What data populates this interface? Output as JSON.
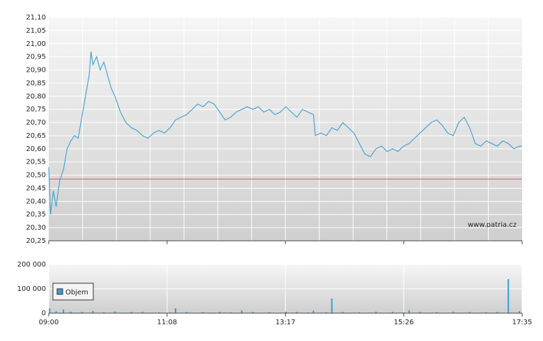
{
  "chart_data": [
    {
      "type": "line",
      "xlim": [
        0,
        515
      ],
      "ylim": [
        20.25,
        21.1
      ],
      "yticks": [
        {
          "value": 20.25,
          "label": "20,25"
        },
        {
          "value": 20.3,
          "label": "20,30"
        },
        {
          "value": 20.35,
          "label": "20,35"
        },
        {
          "value": 20.4,
          "label": "20,40"
        },
        {
          "value": 20.45,
          "label": "20,45"
        },
        {
          "value": 20.5,
          "label": "20,50"
        },
        {
          "value": 20.55,
          "label": "20,55"
        },
        {
          "value": 20.6,
          "label": "20,60"
        },
        {
          "value": 20.65,
          "label": "20,65"
        },
        {
          "value": 20.7,
          "label": "20,70"
        },
        {
          "value": 20.75,
          "label": "20,75"
        },
        {
          "value": 20.8,
          "label": "20,80"
        },
        {
          "value": 20.85,
          "label": "20,85"
        },
        {
          "value": 20.9,
          "label": "20,90"
        },
        {
          "value": 20.95,
          "label": "20,95"
        },
        {
          "value": 21.0,
          "label": "21,00"
        },
        {
          "value": 21.05,
          "label": "21,05"
        },
        {
          "value": 21.1,
          "label": "21,10"
        }
      ],
      "grid": true,
      "color": "#4aa3d0",
      "reference_line": 20.485,
      "reference_color": "#e05050",
      "watermark": "www.patria.cz",
      "x": [
        0,
        2,
        5,
        8,
        12,
        16,
        20,
        24,
        28,
        32,
        36,
        40,
        44,
        46,
        48,
        52,
        56,
        60,
        64,
        68,
        72,
        78,
        84,
        90,
        96,
        102,
        108,
        114,
        120,
        126,
        132,
        138,
        144,
        150,
        156,
        162,
        168,
        174,
        180,
        186,
        192,
        198,
        204,
        210,
        216,
        222,
        228,
        234,
        240,
        246,
        252,
        258,
        264,
        270,
        276,
        282,
        288,
        290,
        296,
        302,
        308,
        314,
        320,
        326,
        332,
        338,
        344,
        350,
        356,
        362,
        368,
        374,
        380,
        386,
        392,
        398,
        404,
        410,
        416,
        422,
        428,
        434,
        440,
        446,
        452,
        458,
        464,
        470,
        476,
        482,
        488,
        494,
        500,
        506,
        512,
        515
      ],
      "values": [
        20.53,
        20.35,
        20.44,
        20.38,
        20.48,
        20.52,
        20.6,
        20.63,
        20.65,
        20.64,
        20.72,
        20.8,
        20.88,
        20.97,
        20.92,
        20.95,
        20.9,
        20.93,
        20.88,
        20.83,
        20.8,
        20.74,
        20.7,
        20.68,
        20.67,
        20.65,
        20.64,
        20.66,
        20.67,
        20.66,
        20.68,
        20.71,
        20.72,
        20.73,
        20.75,
        20.77,
        20.76,
        20.78,
        20.77,
        20.74,
        20.71,
        20.72,
        20.74,
        20.75,
        20.76,
        20.75,
        20.76,
        20.74,
        20.75,
        20.73,
        20.74,
        20.76,
        20.74,
        20.72,
        20.75,
        20.74,
        20.73,
        20.65,
        20.66,
        20.65,
        20.68,
        20.67,
        20.7,
        20.68,
        20.66,
        20.62,
        20.58,
        20.57,
        20.6,
        20.61,
        20.59,
        20.6,
        20.59,
        20.61,
        20.62,
        20.64,
        20.66,
        20.68,
        20.7,
        20.71,
        20.69,
        20.66,
        20.65,
        20.7,
        20.72,
        20.68,
        20.62,
        20.61,
        20.63,
        20.62,
        20.61,
        20.63,
        20.62,
        20.6,
        20.61,
        20.61
      ]
    },
    {
      "type": "bar",
      "xlim": [
        0,
        515
      ],
      "xticks": [
        {
          "value": 0,
          "label": "09:00"
        },
        {
          "value": 128.75,
          "label": "11:08"
        },
        {
          "value": 257.5,
          "label": "13:17"
        },
        {
          "value": 386.25,
          "label": "15:26"
        },
        {
          "value": 515,
          "label": "17:35"
        }
      ],
      "ylim": [
        0,
        200000
      ],
      "yticks": [
        0,
        {
          "value": 100000,
          "label": "100 000"
        },
        {
          "value": 200000,
          "label": "200 000"
        }
      ],
      "color": "#3b9ccc",
      "legend": "top-left",
      "name": "Objem",
      "x": [
        1,
        8,
        16,
        24,
        36,
        48,
        60,
        72,
        90,
        102,
        120,
        132,
        138,
        150,
        168,
        186,
        198,
        210,
        222,
        240,
        258,
        270,
        282,
        288,
        302,
        308,
        320,
        338,
        356,
        374,
        386,
        392,
        404,
        422,
        440,
        458,
        476,
        488,
        500,
        512
      ],
      "values": [
        20000,
        8000,
        15000,
        6000,
        5000,
        9000,
        4000,
        7000,
        5000,
        6000,
        4000,
        3000,
        20000,
        5000,
        4000,
        6000,
        4000,
        12000,
        5000,
        4000,
        6000,
        5000,
        3000,
        10000,
        4000,
        60000,
        5000,
        4000,
        6000,
        5000,
        3000,
        12000,
        5000,
        4000,
        6000,
        5000,
        4000,
        5000,
        140000,
        8000
      ]
    }
  ]
}
